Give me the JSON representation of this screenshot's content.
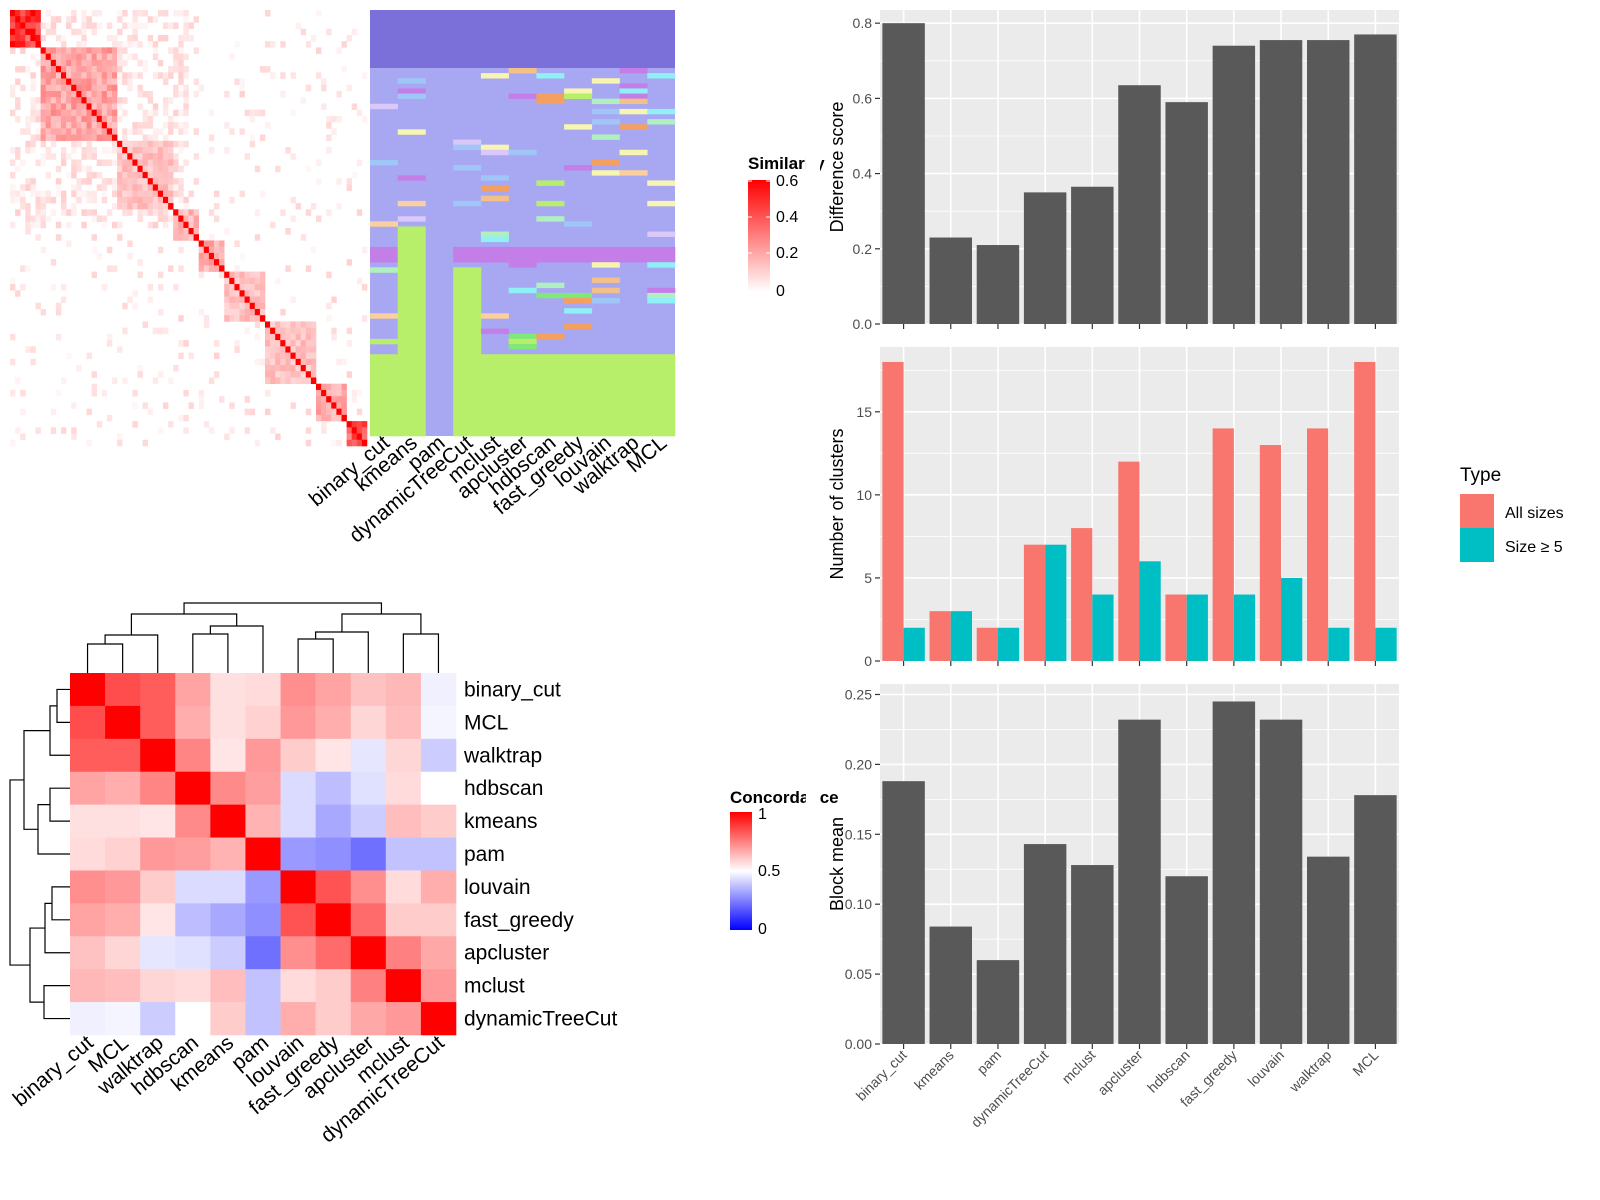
{
  "colors": {
    "bar": "#595959",
    "panel_bg": "#ebebeb",
    "grid": "#ffffff",
    "all_sizes": "#F8766D",
    "size_ge_5": "#00BFC4",
    "heat_high": "#ff0000",
    "heat_low": "#ffffff",
    "concord_low": "#0000ff",
    "concord_mid": "#ffffff",
    "concord_high": "#ff0000"
  },
  "heatmap_similarity": {
    "legend_title": "Similarity",
    "legend_ticks": [
      "0.6",
      "0.4",
      "0.2",
      "0"
    ],
    "method_labels": [
      "binary_cut",
      "kmeans",
      "pam",
      "dynamicTreeCut",
      "mclust",
      "apcluster",
      "hdbscan",
      "fast_greedy",
      "louvain",
      "walktrap",
      "MCL"
    ]
  },
  "heatmap_concordance": {
    "legend_title": "Concordance",
    "legend_ticks": [
      "1",
      "0.5",
      "0"
    ],
    "row_labels": [
      "binary_cut",
      "MCL",
      "walktrap",
      "hdbscan",
      "kmeans",
      "pam",
      "louvain",
      "fast_greedy",
      "apcluster",
      "mclust",
      "dynamicTreeCut"
    ],
    "col_labels": [
      "binary_cut",
      "MCL",
      "walktrap",
      "hdbscan",
      "kmeans",
      "pam",
      "louvain",
      "fast_greedy",
      "apcluster",
      "mclust",
      "dynamicTreeCut"
    ],
    "matrix": [
      [
        1.0,
        0.85,
        0.82,
        0.68,
        0.56,
        0.57,
        0.72,
        0.68,
        0.62,
        0.64,
        0.47
      ],
      [
        0.85,
        1.0,
        0.82,
        0.66,
        0.56,
        0.59,
        0.7,
        0.66,
        0.58,
        0.63,
        0.48
      ],
      [
        0.82,
        0.82,
        1.0,
        0.74,
        0.55,
        0.7,
        0.6,
        0.55,
        0.45,
        0.58,
        0.4
      ],
      [
        0.68,
        0.66,
        0.74,
        1.0,
        0.73,
        0.69,
        0.43,
        0.37,
        0.44,
        0.57,
        0.5
      ],
      [
        0.56,
        0.56,
        0.55,
        0.73,
        1.0,
        0.65,
        0.43,
        0.33,
        0.4,
        0.63,
        0.6
      ],
      [
        0.57,
        0.59,
        0.7,
        0.69,
        0.65,
        1.0,
        0.3,
        0.28,
        0.22,
        0.38,
        0.38
      ],
      [
        0.72,
        0.7,
        0.6,
        0.43,
        0.43,
        0.3,
        1.0,
        0.84,
        0.72,
        0.57,
        0.66
      ],
      [
        0.68,
        0.66,
        0.55,
        0.37,
        0.33,
        0.28,
        0.84,
        1.0,
        0.79,
        0.6,
        0.6
      ],
      [
        0.62,
        0.58,
        0.45,
        0.44,
        0.4,
        0.22,
        0.72,
        0.79,
        1.0,
        0.75,
        0.67
      ],
      [
        0.64,
        0.63,
        0.58,
        0.57,
        0.63,
        0.38,
        0.57,
        0.6,
        0.75,
        1.0,
        0.7
      ],
      [
        0.47,
        0.48,
        0.4,
        0.5,
        0.6,
        0.38,
        0.66,
        0.6,
        0.67,
        0.7,
        1.0
      ]
    ]
  },
  "chart_data": [
    {
      "type": "bar",
      "title": "",
      "xlabel": "",
      "ylabel": "Difference score",
      "categories": [
        "binary_cut",
        "kmeans",
        "pam",
        "dynamicTreeCut",
        "mclust",
        "apcluster",
        "hdbscan",
        "fast_greedy",
        "louvain",
        "walktrap",
        "MCL"
      ],
      "values": [
        0.8,
        0.23,
        0.21,
        0.35,
        0.365,
        0.635,
        0.59,
        0.74,
        0.755,
        0.755,
        0.77
      ],
      "ylim": [
        0,
        0.835
      ],
      "yticks": [
        0.0,
        0.2,
        0.4,
        0.6,
        0.8
      ],
      "ytick_labels": [
        "0.0",
        "0.2",
        "0.4",
        "0.6",
        "0.8"
      ],
      "grid": true
    },
    {
      "type": "bar",
      "title": "",
      "xlabel": "",
      "ylabel": "Number of clusters",
      "categories": [
        "binary_cut",
        "kmeans",
        "pam",
        "dynamicTreeCut",
        "mclust",
        "apcluster",
        "hdbscan",
        "fast_greedy",
        "louvain",
        "walktrap",
        "MCL"
      ],
      "series": [
        {
          "name": "All sizes",
          "values": [
            18,
            3,
            2,
            7,
            8,
            12,
            4,
            14,
            13,
            14,
            18
          ]
        },
        {
          "name": "Size ≥ 5",
          "values": [
            2,
            3,
            2,
            7,
            4,
            6,
            4,
            4,
            5,
            2,
            2
          ]
        }
      ],
      "ylim": [
        0,
        18.9
      ],
      "yticks": [
        0,
        5,
        10,
        15
      ],
      "ytick_labels": [
        "0",
        "5",
        "10",
        "15"
      ],
      "legend_title": "Type",
      "legend_position": "right",
      "grid": true
    },
    {
      "type": "bar",
      "title": "",
      "xlabel": "",
      "ylabel": "Block mean",
      "categories": [
        "binary_cut",
        "kmeans",
        "pam",
        "dynamicTreeCut",
        "mclust",
        "apcluster",
        "hdbscan",
        "fast_greedy",
        "louvain",
        "walktrap",
        "MCL"
      ],
      "values": [
        0.188,
        0.084,
        0.06,
        0.143,
        0.128,
        0.232,
        0.12,
        0.245,
        0.232,
        0.134,
        0.178
      ],
      "ylim": [
        0,
        0.2575
      ],
      "yticks": [
        0.0,
        0.05,
        0.1,
        0.15,
        0.2,
        0.25
      ],
      "ytick_labels": [
        "0.00",
        "0.05",
        "0.10",
        "0.15",
        "0.20",
        "0.25"
      ],
      "grid": true
    }
  ]
}
